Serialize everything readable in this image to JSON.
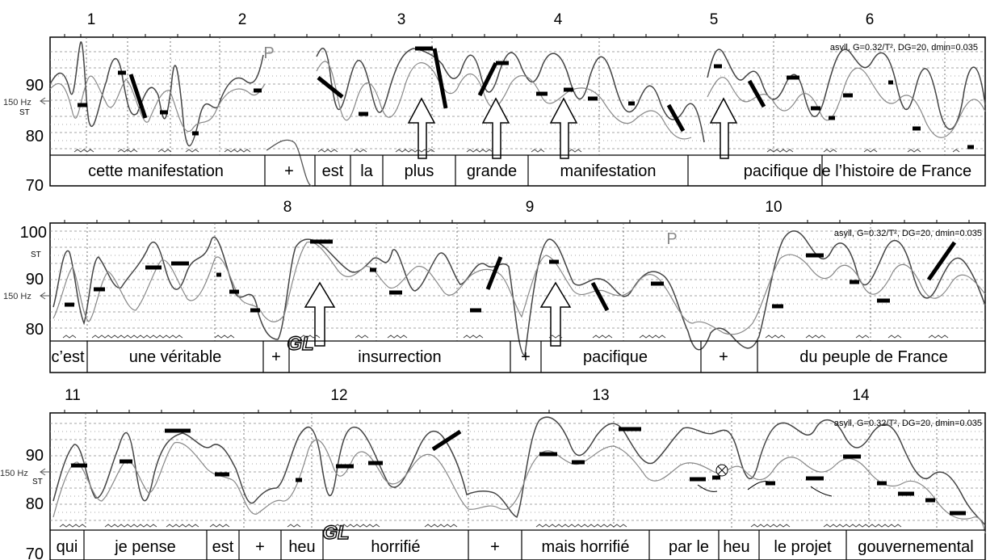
{
  "chart_data": [
    {
      "type": "line",
      "panel": 1,
      "ylabel": "ST",
      "yticks": [
        "90",
        "80",
        "70"
      ],
      "reference_label": "150 Hz",
      "info": "asyll, G=0.32/T², DG=20, dmin=0.035",
      "pause_marker": "P",
      "grid": true,
      "syllable_numbers": [
        "1",
        "2",
        "3",
        "4",
        "5",
        "6"
      ],
      "words": [
        "cette manifestation",
        "+",
        "est",
        "la",
        "plus",
        "grande",
        "manifestation",
        "pacifique de l’histoire de France"
      ]
    },
    {
      "type": "line",
      "panel": 2,
      "ylabel": "ST",
      "yticks": [
        "100",
        "90",
        "80"
      ],
      "reference_label": "150 Hz",
      "info": "asyll, G=0.32/T², DG=20, dmin=0.035",
      "pause_marker": "P",
      "glottal_marker": "GL",
      "grid": true,
      "syllable_numbers": [
        "8",
        "9",
        "10"
      ],
      "words": [
        "c’est",
        "une véritable",
        "+",
        "insurrection",
        "+",
        "pacifique",
        "+",
        "du peuple de France"
      ]
    },
    {
      "type": "line",
      "panel": 3,
      "ylabel": "ST",
      "yticks": [
        "90",
        "80",
        "70"
      ],
      "reference_label": "150 Hz",
      "info": "asyll, G=0.32/T², DG=20, dmin=0.035",
      "glottal_marker": "GL",
      "grid": true,
      "syllable_numbers": [
        "11",
        "12",
        "13",
        "14"
      ],
      "words": [
        "qui",
        "je pense",
        "est",
        "+",
        "heu",
        "horrifié",
        "+",
        "mais horrifié",
        "par le",
        "heu",
        "le projet",
        "gouvernemental"
      ]
    }
  ]
}
